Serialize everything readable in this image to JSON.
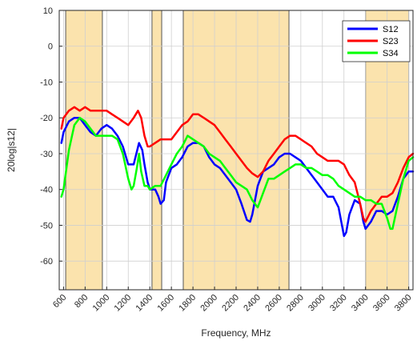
{
  "chart_data": {
    "type": "line",
    "xlabel": "Frequency, MHz",
    "ylabel": "20log|s12|",
    "xlim": [
      560,
      3840
    ],
    "ylim": [
      -68,
      10
    ],
    "x_ticks": [
      600,
      800,
      1000,
      1200,
      1400,
      1600,
      1800,
      2000,
      2200,
      2400,
      2600,
      2800,
      3000,
      3200,
      3400,
      3600,
      3800
    ],
    "y_ticks": [
      10,
      0,
      -10,
      -20,
      -30,
      -40,
      -50,
      -60
    ],
    "grid": true,
    "legend_position": "top-right",
    "shaded_bands": [
      [
        620,
        960
      ],
      [
        1420,
        1510
      ],
      [
        1710,
        2690
      ],
      [
        3400,
        3800
      ]
    ],
    "band_color": "#fbe3ad",
    "series": [
      {
        "name": "S12",
        "color": "#0000ff",
        "x": [
          580,
          600,
          650,
          700,
          750,
          800,
          850,
          900,
          950,
          1000,
          1050,
          1100,
          1150,
          1200,
          1250,
          1300,
          1330,
          1350,
          1380,
          1400,
          1450,
          1480,
          1500,
          1530,
          1550,
          1600,
          1650,
          1700,
          1750,
          1800,
          1850,
          1900,
          1950,
          2000,
          2050,
          2100,
          2150,
          2200,
          2250,
          2300,
          2330,
          2350,
          2400,
          2450,
          2500,
          2550,
          2600,
          2650,
          2700,
          2750,
          2800,
          2850,
          2900,
          2950,
          3000,
          3050,
          3100,
          3150,
          3200,
          3220,
          3250,
          3300,
          3350,
          3380,
          3400,
          3450,
          3500,
          3550,
          3600,
          3650,
          3700,
          3750,
          3800,
          3840
        ],
        "y": [
          -27,
          -24,
          -21,
          -20,
          -20,
          -22,
          -24,
          -25,
          -23,
          -22,
          -23,
          -25,
          -28,
          -33,
          -33,
          -27,
          -29,
          -33,
          -38,
          -40,
          -40,
          -42,
          -44,
          -43,
          -38,
          -34,
          -33,
          -31,
          -28,
          -27,
          -27,
          -28,
          -31,
          -33,
          -34,
          -36,
          -38,
          -40,
          -44,
          -48.5,
          -49,
          -47,
          -39,
          -35,
          -34,
          -33,
          -31,
          -30,
          -30,
          -31,
          -32,
          -34,
          -36,
          -38,
          -40,
          -42,
          -42,
          -45,
          -53,
          -52,
          -47,
          -43,
          -44,
          -49,
          -51,
          -49,
          -46,
          -46,
          -47,
          -46,
          -42,
          -37,
          -35,
          -35
        ]
      },
      {
        "name": "S23",
        "color": "#ff0000",
        "x": [
          580,
          600,
          650,
          700,
          750,
          800,
          850,
          900,
          950,
          1000,
          1050,
          1100,
          1150,
          1200,
          1250,
          1290,
          1320,
          1350,
          1380,
          1400,
          1450,
          1500,
          1550,
          1600,
          1650,
          1700,
          1750,
          1800,
          1850,
          1900,
          1950,
          2000,
          2050,
          2100,
          2150,
          2200,
          2250,
          2300,
          2350,
          2400,
          2450,
          2500,
          2550,
          2600,
          2650,
          2700,
          2750,
          2800,
          2850,
          2900,
          2950,
          3000,
          3050,
          3100,
          3150,
          3200,
          3250,
          3300,
          3350,
          3380,
          3400,
          3450,
          3500,
          3550,
          3600,
          3650,
          3700,
          3750,
          3800,
          3840
        ],
        "y": [
          -23,
          -20,
          -18,
          -17,
          -18,
          -17,
          -18,
          -18,
          -18,
          -18,
          -19,
          -20,
          -21,
          -22,
          -20,
          -18,
          -20,
          -25,
          -28,
          -28,
          -27,
          -26,
          -26,
          -26,
          -24,
          -22,
          -21,
          -19,
          -19,
          -20,
          -21,
          -22,
          -24,
          -26,
          -28,
          -30,
          -32,
          -34,
          -35.5,
          -36.5,
          -35,
          -32,
          -30,
          -28,
          -26,
          -25,
          -25,
          -26,
          -27,
          -28,
          -30,
          -31,
          -32,
          -32,
          -32,
          -33,
          -36,
          -38,
          -44,
          -48,
          -49,
          -46,
          -44,
          -42,
          -42,
          -41,
          -38,
          -34,
          -31,
          -30
        ]
      },
      {
        "name": "S34",
        "color": "#00ff00",
        "x": [
          580,
          600,
          650,
          700,
          750,
          800,
          850,
          900,
          950,
          1000,
          1050,
          1100,
          1150,
          1200,
          1230,
          1250,
          1280,
          1300,
          1320,
          1350,
          1380,
          1400,
          1450,
          1500,
          1550,
          1600,
          1650,
          1700,
          1750,
          1800,
          1850,
          1900,
          1950,
          2000,
          2050,
          2100,
          2150,
          2200,
          2250,
          2300,
          2350,
          2400,
          2450,
          2500,
          2550,
          2600,
          2650,
          2700,
          2750,
          2800,
          2850,
          2900,
          2950,
          3000,
          3050,
          3100,
          3150,
          3200,
          3250,
          3300,
          3350,
          3400,
          3450,
          3500,
          3550,
          3600,
          3630,
          3650,
          3700,
          3750,
          3800,
          3840
        ],
        "y": [
          -42,
          -40,
          -29,
          -22,
          -20,
          -21,
          -23,
          -25,
          -25,
          -25,
          -25,
          -26,
          -30,
          -37,
          -40,
          -39,
          -34,
          -30,
          -35,
          -39,
          -39,
          -40,
          -39,
          -39,
          -36,
          -33,
          -30,
          -28,
          -25,
          -26,
          -27,
          -28,
          -30,
          -31,
          -32,
          -34,
          -36,
          -38,
          -39,
          -40,
          -43,
          -45,
          -41,
          -37,
          -37,
          -36,
          -35,
          -34,
          -33,
          -33,
          -34,
          -34,
          -35,
          -36,
          -36,
          -37,
          -39,
          -40,
          -41,
          -42,
          -42,
          -43,
          -43,
          -44,
          -44,
          -48,
          -51,
          -51,
          -44,
          -37,
          -32,
          -31
        ]
      }
    ]
  }
}
